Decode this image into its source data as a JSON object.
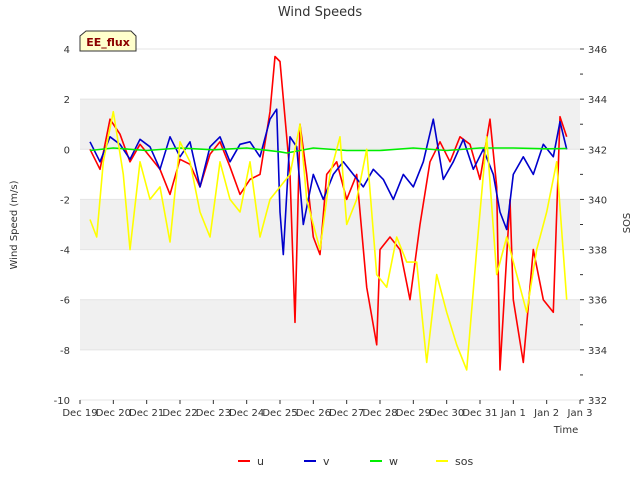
{
  "chart_data": {
    "type": "line",
    "title": "Wind Speeds",
    "badge": "EE_flux",
    "xlabel": "Time",
    "ylabel": "Wind Speed (m/s)",
    "y2label": "SOS",
    "x_ticks": [
      "Dec 19",
      "Dec 20",
      "Dec 21",
      "Dec 22",
      "Dec 23",
      "Dec 24",
      "Dec 25",
      "Dec 26",
      "Dec 27",
      "Dec 28",
      "Dec 29",
      "Dec 30",
      "Dec 31",
      "Jan 1",
      "Jan 2",
      "Jan 3"
    ],
    "xlim": [
      0,
      15
    ],
    "ylim": [
      -10,
      4
    ],
    "y_ticks": [
      "-10",
      "-8",
      "-6",
      "-4",
      "-2",
      "0",
      "2",
      "4"
    ],
    "y2lim": [
      332,
      346
    ],
    "y2_ticks": [
      "332",
      "334",
      "336",
      "338",
      "340",
      "342",
      "344",
      "346"
    ],
    "legend": "bottom-center",
    "series": [
      {
        "name": "u",
        "color": "#ff0000",
        "axis": "left",
        "x": [
          0.3,
          0.6,
          0.9,
          1.2,
          1.5,
          1.8,
          2.1,
          2.4,
          2.7,
          3.0,
          3.3,
          3.6,
          3.9,
          4.2,
          4.5,
          4.8,
          5.1,
          5.4,
          5.7,
          5.85,
          6.0,
          6.2,
          6.3,
          6.45,
          6.6,
          6.8,
          7.0,
          7.2,
          7.4,
          7.7,
          8.0,
          8.3,
          8.6,
          8.9,
          9.0,
          9.3,
          9.6,
          9.9,
          10.2,
          10.5,
          10.8,
          11.1,
          11.4,
          11.7,
          12.0,
          12.3,
          12.5,
          12.6,
          12.9,
          13.0,
          13.3,
          13.6,
          13.9,
          14.2,
          14.4,
          14.6
        ],
        "values": [
          0.0,
          -0.8,
          1.2,
          0.6,
          -0.5,
          0.2,
          -0.3,
          -0.8,
          -1.8,
          -0.4,
          -0.6,
          -1.5,
          -0.2,
          0.3,
          -0.7,
          -1.8,
          -1.2,
          -1.0,
          1.5,
          3.7,
          3.5,
          0.5,
          -1.0,
          -6.9,
          1.0,
          -1.0,
          -3.5,
          -4.2,
          -1.0,
          -0.5,
          -2.0,
          -1.0,
          -5.5,
          -7.8,
          -4.0,
          -3.5,
          -4.0,
          -6.0,
          -3.0,
          -0.5,
          0.3,
          -0.5,
          0.5,
          0.2,
          -1.2,
          1.2,
          -1.5,
          -8.8,
          -2.0,
          -6.0,
          -8.5,
          -4.0,
          -6.0,
          -6.5,
          1.3,
          0.5
        ]
      },
      {
        "name": "v",
        "color": "#0000cc",
        "axis": "left",
        "x": [
          0.3,
          0.6,
          0.9,
          1.2,
          1.5,
          1.8,
          2.1,
          2.4,
          2.7,
          3.0,
          3.3,
          3.6,
          3.9,
          4.2,
          4.5,
          4.8,
          5.1,
          5.4,
          5.7,
          5.9,
          6.0,
          6.1,
          6.3,
          6.5,
          6.7,
          7.0,
          7.3,
          7.6,
          7.9,
          8.2,
          8.5,
          8.8,
          9.1,
          9.4,
          9.7,
          10.0,
          10.3,
          10.6,
          10.9,
          11.2,
          11.5,
          11.8,
          12.1,
          12.4,
          12.6,
          12.8,
          13.0,
          13.3,
          13.6,
          13.9,
          14.2,
          14.4,
          14.6
        ],
        "values": [
          0.3,
          -0.5,
          0.5,
          0.2,
          -0.4,
          0.4,
          0.1,
          -0.8,
          0.5,
          -0.3,
          0.3,
          -1.5,
          0.1,
          0.5,
          -0.5,
          0.2,
          0.3,
          -0.3,
          1.2,
          1.6,
          -2.5,
          -4.2,
          0.5,
          0.1,
          -3.0,
          -1.0,
          -2.0,
          -1.0,
          -0.5,
          -1.0,
          -1.5,
          -0.8,
          -1.2,
          -2.0,
          -1.0,
          -1.5,
          -0.5,
          1.2,
          -1.2,
          -0.5,
          0.4,
          -0.8,
          0.0,
          -1.0,
          -2.5,
          -3.2,
          -1.0,
          -0.3,
          -1.0,
          0.2,
          -0.3,
          1.1,
          0.0
        ]
      },
      {
        "name": "w",
        "color": "#00ee00",
        "axis": "left",
        "x": [
          0.3,
          1.0,
          2.0,
          3.0,
          4.0,
          5.0,
          6.0,
          6.2,
          7.0,
          8.0,
          9.0,
          10.0,
          11.0,
          12.0,
          13.0,
          14.0,
          14.6
        ],
        "values": [
          -0.05,
          0.05,
          -0.05,
          0.05,
          -0.02,
          0.05,
          -0.1,
          -0.15,
          0.05,
          -0.05,
          -0.05,
          0.05,
          -0.05,
          0.05,
          0.05,
          0.02,
          0.03
        ]
      },
      {
        "name": "sos",
        "color": "#ffff00",
        "axis": "right",
        "x": [
          0.3,
          0.5,
          0.7,
          1.0,
          1.3,
          1.5,
          1.8,
          2.1,
          2.4,
          2.7,
          3.0,
          3.3,
          3.6,
          3.9,
          4.2,
          4.5,
          4.8,
          5.1,
          5.4,
          5.7,
          6.0,
          6.3,
          6.6,
          6.8,
          7.0,
          7.2,
          7.5,
          7.8,
          8.0,
          8.3,
          8.6,
          8.9,
          9.2,
          9.5,
          9.8,
          10.1,
          10.4,
          10.7,
          11.0,
          11.3,
          11.6,
          11.9,
          12.2,
          12.5,
          12.8,
          13.1,
          13.4,
          13.7,
          14.0,
          14.3,
          14.6
        ],
        "values": [
          339.2,
          338.5,
          341.5,
          343.5,
          341.0,
          338.0,
          341.5,
          340.0,
          340.5,
          338.3,
          342.3,
          341.5,
          339.5,
          338.5,
          341.5,
          340.0,
          339.5,
          341.5,
          338.5,
          340.0,
          340.5,
          341.0,
          343.0,
          340.0,
          339.0,
          338.0,
          341.0,
          342.5,
          339.0,
          340.0,
          342.0,
          337.0,
          336.5,
          338.5,
          337.5,
          337.5,
          333.5,
          337.0,
          335.5,
          334.2,
          333.2,
          338.0,
          342.5,
          337.0,
          338.5,
          337.0,
          335.5,
          338.0,
          339.5,
          341.5,
          336.0
        ]
      }
    ]
  }
}
